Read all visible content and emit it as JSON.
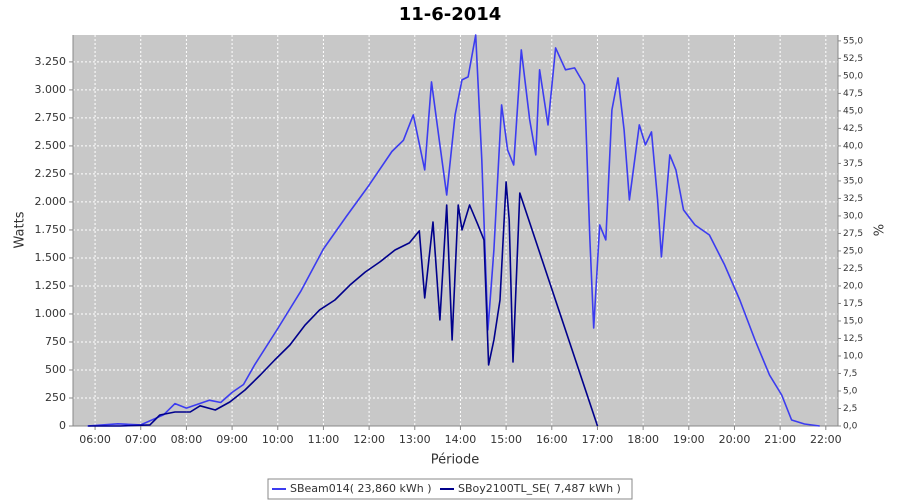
{
  "chart_data": {
    "type": "line",
    "title": "11-6-2014",
    "xlabel": "Période",
    "ylabel": "Watts",
    "y2label": "%",
    "xlim": [
      "05:31",
      "22:16"
    ],
    "xticks": [
      "06:00",
      "07:00",
      "08:00",
      "09:00",
      "10:00",
      "11:00",
      "12:00",
      "13:00",
      "14:00",
      "15:00",
      "16:00",
      "17:00",
      "18:00",
      "19:00",
      "20:00",
      "21:00",
      "22:00"
    ],
    "ylim": [
      0,
      3490
    ],
    "yticks": [
      0,
      250,
      500,
      750,
      {
        "value": 1000,
        "label": "1.000"
      },
      {
        "value": 1250,
        "label": "1.250"
      },
      {
        "value": 1500,
        "label": "1.500"
      },
      {
        "value": 1750,
        "label": "1.750"
      },
      {
        "value": 2000,
        "label": "2.000"
      },
      {
        "value": 2250,
        "label": "2.250"
      },
      {
        "value": 2500,
        "label": "2.500"
      },
      {
        "value": 2750,
        "label": "2.750"
      },
      {
        "value": 3000,
        "label": "3.000"
      },
      {
        "value": 3250,
        "label": "3.250"
      }
    ],
    "y2lim": [
      0,
      55.84
    ],
    "y2ticks": [
      {
        "value": 0,
        "label": "0,0"
      },
      {
        "value": 2.5,
        "label": "2,5"
      },
      {
        "value": 5,
        "label": "5,0"
      },
      {
        "value": 7.5,
        "label": "7,5"
      },
      {
        "value": 10,
        "label": "10,0"
      },
      {
        "value": 12.5,
        "label": "12,5"
      },
      {
        "value": 15,
        "label": "15,0"
      },
      {
        "value": 17.5,
        "label": "17,5"
      },
      {
        "value": 20,
        "label": "20,0"
      },
      {
        "value": 22.5,
        "label": "22,5"
      },
      {
        "value": 25,
        "label": "25,0"
      },
      {
        "value": 27.5,
        "label": "27,5"
      },
      {
        "value": 30,
        "label": "30,0"
      },
      {
        "value": 32.5,
        "label": "32,5"
      },
      {
        "value": 35,
        "label": "35,0"
      },
      {
        "value": 37.5,
        "label": "37,5"
      },
      {
        "value": 40,
        "label": "40,0"
      },
      {
        "value": 42.5,
        "label": "42,5"
      },
      {
        "value": 45,
        "label": "45,0"
      },
      {
        "value": 47.5,
        "label": "47,5"
      },
      {
        "value": 50,
        "label": "50,0"
      },
      {
        "value": 52.5,
        "label": "52,5"
      },
      {
        "value": 55,
        "label": "55,0"
      }
    ],
    "grid": true,
    "series": [
      {
        "name": "SBeam014( 23,860 kWh )",
        "color": "#3c3cf0",
        "x": [
          "05:50",
          "06:30",
          "07:00",
          "07:30",
          "07:45",
          "08:00",
          "08:30",
          "08:45",
          "09:00",
          "09:15",
          "09:30",
          "10:00",
          "10:30",
          "11:00",
          "11:30",
          "12:00",
          "12:30",
          "12:45",
          "12:58",
          "13:13",
          "13:22",
          "13:33",
          "13:42",
          "13:53",
          "14:02",
          "14:10",
          "14:20",
          "14:28",
          "14:36",
          "14:44",
          "14:54",
          "15:02",
          "15:10",
          "15:20",
          "15:31",
          "15:39",
          "15:44",
          "15:55",
          "16:05",
          "16:18",
          "16:30",
          "16:43",
          "16:50",
          "16:55",
          "17:03",
          "17:11",
          "17:19",
          "17:27",
          "17:35",
          "17:42",
          "17:55",
          "18:03",
          "18:11",
          "18:19",
          "18:24",
          "18:35",
          "18:43",
          "18:53",
          "19:08",
          "19:27",
          "19:47",
          "20:07",
          "20:27",
          "20:46",
          "21:02",
          "21:15",
          "21:32",
          "21:52"
        ],
        "values": [
          0,
          20,
          10,
          100,
          200,
          160,
          230,
          210,
          300,
          370,
          550,
          870,
          1200,
          1580,
          1870,
          2150,
          2450,
          2550,
          2777,
          2286,
          3071,
          2509,
          2062,
          2777,
          3089,
          3116,
          3490,
          2375,
          857,
          1571,
          2866,
          2464,
          2330,
          3357,
          2732,
          2420,
          3179,
          2688,
          3375,
          3179,
          3196,
          3045,
          1661,
          875,
          1795,
          1661,
          2821,
          3107,
          2643,
          2018,
          2688,
          2509,
          2625,
          2018,
          1509,
          2420,
          2286,
          1929,
          1795,
          1705,
          1438,
          1125,
          768,
          455,
          277,
          54,
          18,
          0
        ]
      },
      {
        "name": "SBoy2100TL_SE( 7,487 kWh )",
        "color": "#00008c",
        "x": [
          "05:51",
          "06:33",
          "07:12",
          "07:25",
          "07:45",
          "08:05",
          "08:18",
          "08:38",
          "08:57",
          "09:17",
          "09:37",
          "09:56",
          "10:16",
          "10:36",
          "10:55",
          "11:15",
          "11:35",
          "11:55",
          "12:14",
          "12:34",
          "12:53",
          "13:06",
          "13:13",
          "13:24",
          "13:33",
          "13:42",
          "13:49",
          "13:57",
          "14:02",
          "14:12",
          "14:23",
          "14:31",
          "14:37",
          "14:44",
          "14:52",
          "15:00",
          "15:04",
          "15:09",
          "15:18",
          "17:00"
        ],
        "values": [
          0,
          0,
          10,
          98,
          125,
          125,
          180,
          143,
          214,
          321,
          455,
          589,
          723,
          902,
          1036,
          1125,
          1259,
          1375,
          1464,
          1571,
          1634,
          1741,
          1143,
          1821,
          946,
          1973,
          768,
          1973,
          1750,
          1973,
          1795,
          1661,
          545,
          768,
          1125,
          2179,
          1839,
          571,
          2080,
          0
        ]
      }
    ]
  }
}
